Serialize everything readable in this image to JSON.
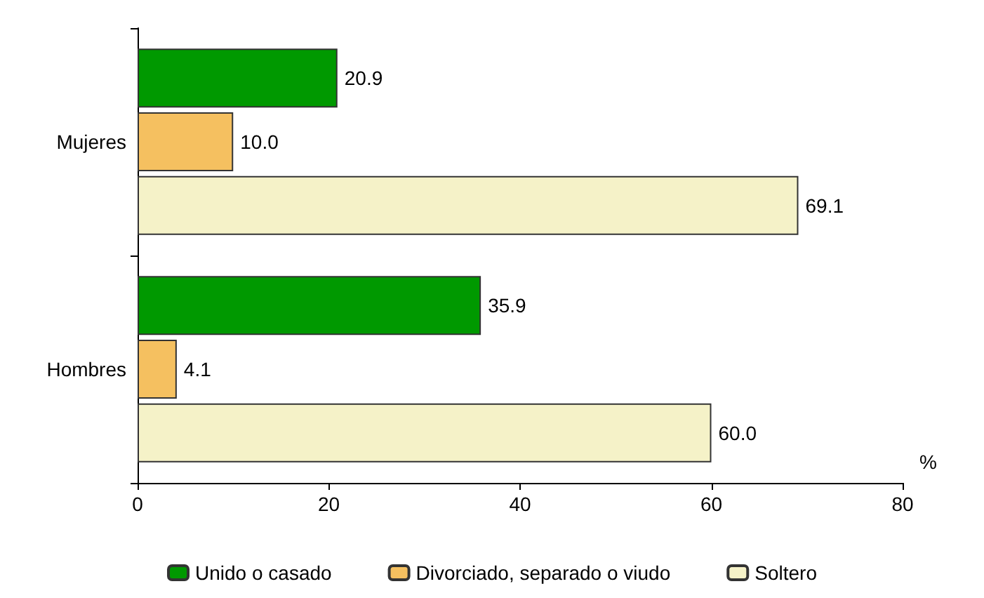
{
  "chart_data": {
    "type": "bar",
    "orientation": "horizontal",
    "categories": [
      "Mujeres",
      "Hombres"
    ],
    "series": [
      {
        "name": "Unido o casado",
        "color": "#009900",
        "values": [
          20.9,
          35.9
        ],
        "value_labels": [
          "20.9",
          "35.9"
        ]
      },
      {
        "name": "Divorciado, separado o viudo",
        "color": "#f5c060",
        "values": [
          10.0,
          4.1
        ],
        "value_labels": [
          "10.0",
          "4.1"
        ]
      },
      {
        "name": "Soltero",
        "color": "#f5f2c8",
        "values": [
          69.1,
          60.0
        ],
        "value_labels": [
          "69.1",
          "60.0"
        ]
      }
    ],
    "xlabel": "%",
    "xlim": [
      0,
      80
    ],
    "xticks": [
      0,
      20,
      40,
      60,
      80
    ],
    "grid": false,
    "legend": "bottom"
  }
}
